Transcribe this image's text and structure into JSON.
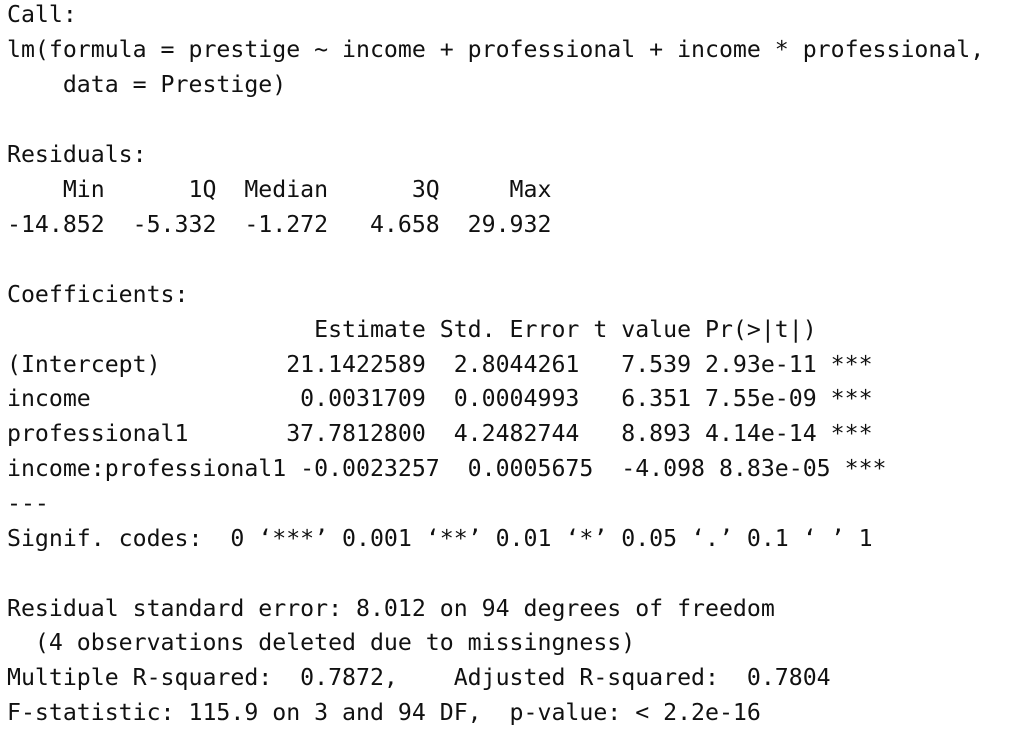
{
  "lines": [
    "Call:",
    "lm(formula = prestige ~ income + professional + income * professional,",
    "    data = Prestige)",
    "",
    "Residuals:",
    "    Min      1Q  Median      3Q     Max ",
    "-14.852  -5.332  -1.272   4.658  29.932 ",
    "",
    "Coefficients:",
    "                      Estimate Std. Error t value Pr(>|t|)    ",
    "(Intercept)         21.1422589  2.8044261   7.539 2.93e-11 ***",
    "income               0.0031709  0.0004993   6.351 7.55e-09 ***",
    "professional1       37.7812800  4.2482744   8.893 4.14e-14 ***",
    "income:professional1 -0.0023257  0.0005675  -4.098 8.83e-05 ***",
    "---",
    "Signif. codes:  0 ‘***’ 0.001 ‘**’ 0.01 ‘*’ 0.05 ‘.’ 0.1 ‘ ’ 1",
    "",
    "Residual standard error: 8.012 on 94 degrees of freedom",
    "  (4 observations deleted due to missingness)",
    "Multiple R-squared:  0.7872,    Adjusted R-squared:  0.7804 ",
    "F-statistic: 115.9 on 3 and 94 DF,  p-value: < 2.2e-16"
  ]
}
